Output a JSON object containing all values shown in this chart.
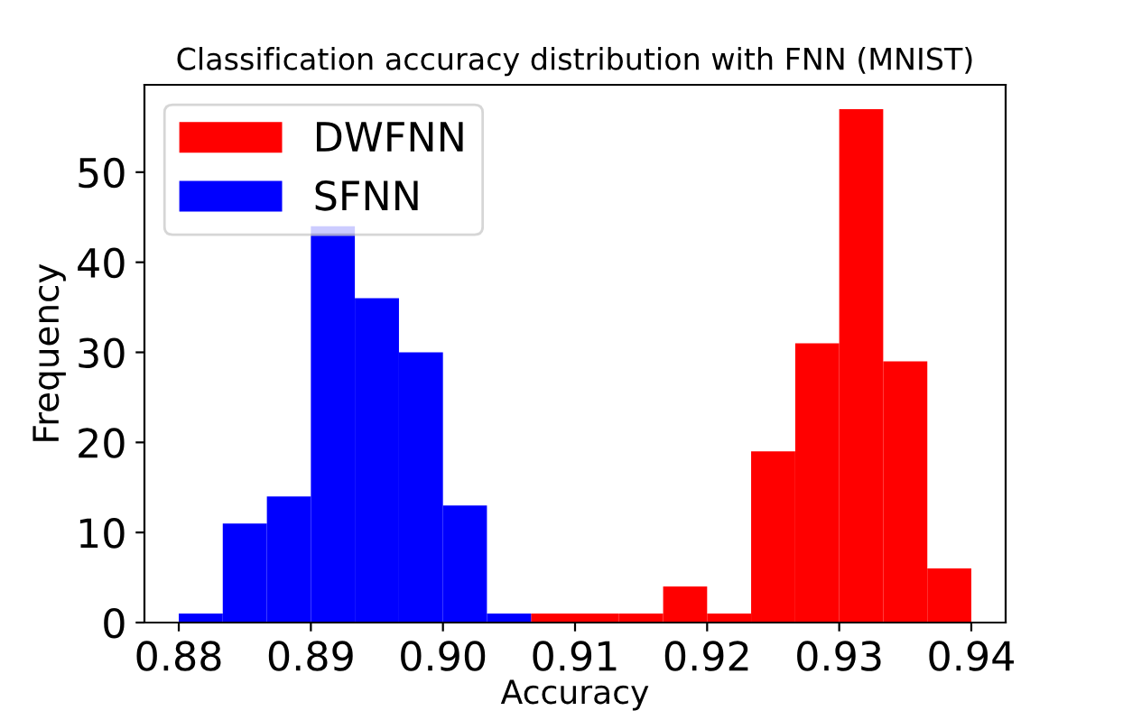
{
  "chart_data": {
    "type": "histogram",
    "title": "Classification accuracy distribution with FNN (MNIST)",
    "xlabel": "Accuracy",
    "ylabel": "Frequency",
    "bins": [
      0.88,
      0.88333,
      0.88667,
      0.89,
      0.89333,
      0.89667,
      0.9,
      0.90333,
      0.90667,
      0.91,
      0.91333,
      0.91667,
      0.92,
      0.92333,
      0.92667,
      0.93,
      0.93333,
      0.93667,
      0.94
    ],
    "series": [
      {
        "name": "DWFNN",
        "color": "#ff0000",
        "values": [
          null,
          null,
          null,
          null,
          null,
          null,
          null,
          null,
          1,
          1,
          1,
          4,
          1,
          19,
          31,
          57,
          29,
          6
        ]
      },
      {
        "name": "SFNN",
        "color": "#0000ff",
        "values": [
          1,
          11,
          14,
          44,
          36,
          30,
          13,
          1,
          null,
          null,
          null,
          null,
          null,
          null,
          null,
          null,
          null,
          null
        ]
      }
    ],
    "xlim": [
      0.8774,
      0.9426
    ],
    "xticks": [
      {
        "value": 0.88,
        "label": "0.88"
      },
      {
        "value": 0.89,
        "label": "0.89"
      },
      {
        "value": 0.9,
        "label": "0.90"
      },
      {
        "value": 0.91,
        "label": "0.91"
      },
      {
        "value": 0.92,
        "label": "0.92"
      },
      {
        "value": 0.93,
        "label": "0.93"
      },
      {
        "value": 0.94,
        "label": "0.94"
      }
    ],
    "ylim": [
      0,
      59.7
    ],
    "yticks": [
      0,
      10,
      20,
      30,
      40,
      50
    ],
    "legend": "top left"
  }
}
